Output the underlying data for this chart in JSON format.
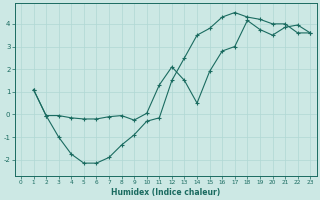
{
  "xlabel": "Humidex (Indice chaleur)",
  "ylabel": "",
  "bg_color": "#cce8e4",
  "grid_color": "#b0d8d4",
  "line_color": "#1a6b60",
  "xlim": [
    -0.5,
    23.5
  ],
  "ylim": [
    -2.7,
    4.9
  ],
  "yticks": [
    -2,
    -1,
    0,
    1,
    2,
    3,
    4
  ],
  "xticks": [
    0,
    1,
    2,
    3,
    4,
    5,
    6,
    7,
    8,
    9,
    10,
    11,
    12,
    13,
    14,
    15,
    16,
    17,
    18,
    19,
    20,
    21,
    22,
    23
  ],
  "line1_x": [
    1,
    2,
    3,
    4,
    5,
    6,
    7,
    8,
    9,
    10,
    11,
    12,
    13,
    14,
    15,
    16,
    17,
    18,
    19,
    20,
    21,
    22,
    23
  ],
  "line1_y": [
    1.1,
    -0.05,
    -1.0,
    -1.75,
    -2.15,
    -2.15,
    -1.9,
    -1.35,
    -0.9,
    -0.3,
    -0.15,
    1.5,
    2.5,
    3.5,
    3.8,
    4.3,
    4.5,
    4.3,
    4.2,
    4.0,
    4.0,
    3.6,
    3.6
  ],
  "line2_x": [
    1,
    2,
    3,
    4,
    5,
    6,
    7,
    8,
    9,
    10,
    11,
    12,
    13,
    14,
    15,
    16,
    17,
    18,
    19,
    20,
    21,
    22,
    23
  ],
  "line2_y": [
    1.1,
    -0.05,
    -0.05,
    -0.15,
    -0.2,
    -0.2,
    -0.1,
    -0.05,
    -0.25,
    0.05,
    1.3,
    2.1,
    1.5,
    0.5,
    1.9,
    2.8,
    3.0,
    4.15,
    3.75,
    3.5,
    3.85,
    3.95,
    3.6
  ]
}
